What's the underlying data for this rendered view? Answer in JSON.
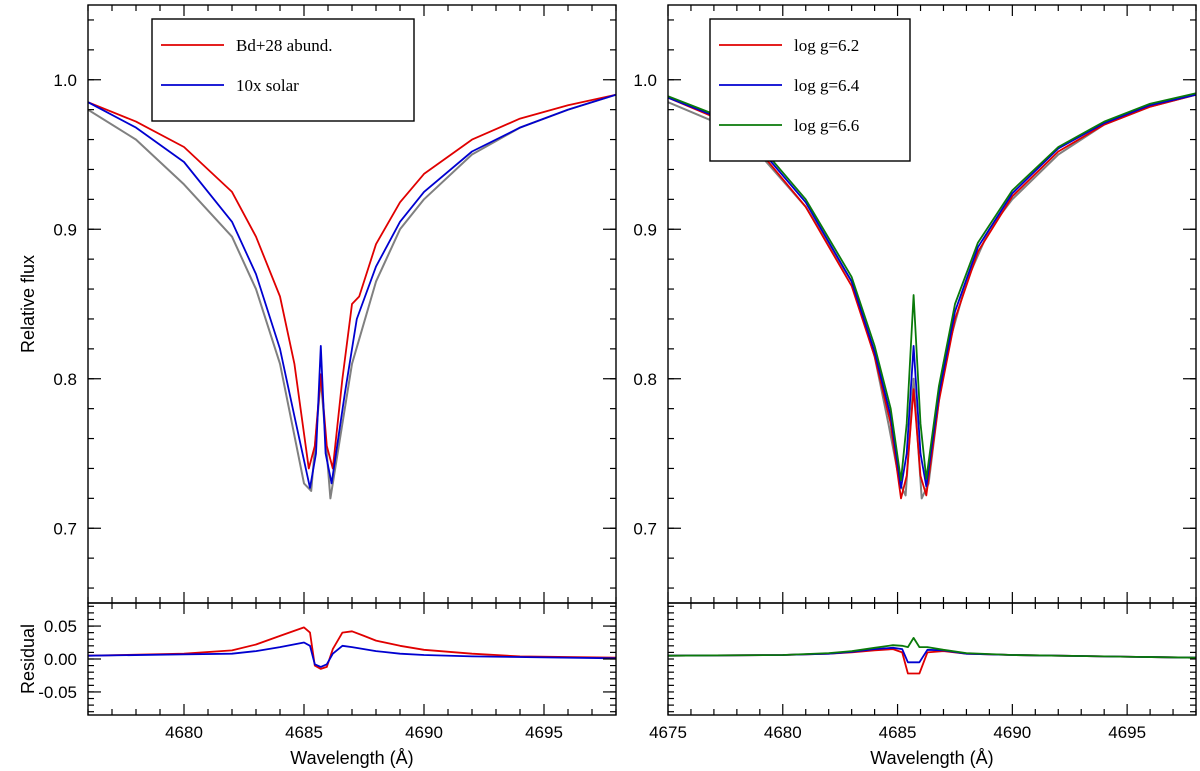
{
  "chart_data": [
    {
      "type": "line",
      "panel": "top-left",
      "ylabel": "Relative flux",
      "xlim": [
        4676,
        4698
      ],
      "ylim": [
        0.65,
        1.05
      ],
      "yticks": [
        {
          "value": 0.7,
          "label": "0.7"
        },
        {
          "value": 0.8,
          "label": "0.8"
        },
        {
          "value": 0.9,
          "label": "0.9"
        },
        {
          "value": 1.0,
          "label": "1.0"
        }
      ],
      "legend": {
        "placement": "top-left"
      },
      "colors": {
        "observed": "#808080",
        "s1": "#e00000",
        "s2": "#0000d0"
      },
      "series": [
        {
          "key": "observed",
          "x": [
            4676,
            4678,
            4680,
            4682,
            4683,
            4684,
            4684.5,
            4685,
            4685.3,
            4685.7,
            4686.1,
            4686.4,
            4687,
            4688,
            4689,
            4690,
            4692,
            4694,
            4696,
            4698
          ],
          "y": [
            0.98,
            0.96,
            0.93,
            0.895,
            0.86,
            0.81,
            0.77,
            0.73,
            0.725,
            0.8,
            0.72,
            0.75,
            0.81,
            0.865,
            0.9,
            0.92,
            0.95,
            0.968,
            0.98,
            0.99
          ]
        },
        {
          "name": "Bd+28 abund.",
          "key": "s1",
          "x": [
            4676,
            4678,
            4680,
            4682,
            4683,
            4684,
            4684.6,
            4685.2,
            4685.45,
            4685.7,
            4685.95,
            4686.2,
            4686.6,
            4687,
            4687.3,
            4688,
            4689,
            4690,
            4692,
            4694,
            4696,
            4698
          ],
          "y": [
            0.985,
            0.972,
            0.955,
            0.925,
            0.895,
            0.855,
            0.81,
            0.74,
            0.755,
            0.803,
            0.755,
            0.74,
            0.8,
            0.85,
            0.855,
            0.89,
            0.918,
            0.937,
            0.96,
            0.974,
            0.983,
            0.99
          ]
        },
        {
          "name": "10x solar",
          "key": "s2",
          "x": [
            4676,
            4678,
            4680,
            4682,
            4683,
            4684,
            4684.6,
            4685.25,
            4685.5,
            4685.7,
            4685.9,
            4686.15,
            4686.7,
            4687.2,
            4688,
            4689,
            4690,
            4692,
            4694,
            4696,
            4698
          ],
          "y": [
            0.985,
            0.968,
            0.945,
            0.905,
            0.87,
            0.82,
            0.775,
            0.727,
            0.75,
            0.822,
            0.75,
            0.73,
            0.79,
            0.84,
            0.875,
            0.905,
            0.925,
            0.952,
            0.968,
            0.98,
            0.99
          ]
        }
      ]
    },
    {
      "type": "line",
      "panel": "bottom-left",
      "xlabel": "Wavelength (Å)",
      "ylabel": "Residual",
      "xlim": [
        4676,
        4698
      ],
      "ylim": [
        -0.085,
        0.085
      ],
      "xticks": [
        {
          "value": 4680,
          "label": "4680"
        },
        {
          "value": 4685,
          "label": "4685"
        },
        {
          "value": 4690,
          "label": "4690"
        },
        {
          "value": 4695,
          "label": "4695"
        }
      ],
      "yticks": [
        {
          "value": -0.05,
          "label": "-0.05"
        },
        {
          "value": 0.0,
          "label": "0.00"
        },
        {
          "value": 0.05,
          "label": "0.05"
        }
      ],
      "colors": {
        "s1": "#e00000",
        "s2": "#0000d0"
      },
      "series": [
        {
          "key": "s1",
          "x": [
            4676,
            4680,
            4682,
            4683,
            4684,
            4685,
            4685.25,
            4685.45,
            4685.7,
            4685.95,
            4686.2,
            4686.6,
            4687,
            4687.5,
            4688,
            4689,
            4690,
            4692,
            4694,
            4698
          ],
          "y": [
            0.005,
            0.008,
            0.013,
            0.022,
            0.035,
            0.048,
            0.04,
            -0.01,
            -0.015,
            -0.012,
            0.015,
            0.04,
            0.042,
            0.035,
            0.028,
            0.02,
            0.014,
            0.008,
            0.004,
            0.002
          ]
        },
        {
          "key": "s2",
          "x": [
            4676,
            4680,
            4682,
            4683,
            4684,
            4685,
            4685.25,
            4685.45,
            4685.7,
            4685.95,
            4686.2,
            4686.6,
            4687,
            4688,
            4689,
            4690,
            4692,
            4698
          ],
          "y": [
            0.005,
            0.007,
            0.008,
            0.012,
            0.018,
            0.025,
            0.02,
            -0.008,
            -0.012,
            -0.008,
            0.008,
            0.02,
            0.018,
            0.012,
            0.008,
            0.006,
            0.004,
            0.001
          ]
        }
      ]
    },
    {
      "type": "line",
      "panel": "top-right",
      "xlim": [
        4675,
        4698
      ],
      "ylim": [
        0.65,
        1.05
      ],
      "yticks": [
        {
          "value": 0.7,
          "label": "0.7"
        },
        {
          "value": 0.8,
          "label": "0.8"
        },
        {
          "value": 0.9,
          "label": "0.9"
        },
        {
          "value": 1.0,
          "label": "1.0"
        }
      ],
      "legend": {
        "placement": "top-left"
      },
      "colors": {
        "observed": "#808080",
        "s1": "#e00000",
        "s2": "#0000d0",
        "s3": "#0a7a0a"
      },
      "series": [
        {
          "key": "observed",
          "x": [
            4675,
            4677,
            4679,
            4681,
            4683,
            4684,
            4684.6,
            4685.1,
            4685.35,
            4685.7,
            4686.05,
            4686.35,
            4687,
            4688,
            4689,
            4690,
            4692,
            4694,
            4696,
            4698
          ],
          "y": [
            0.985,
            0.972,
            0.95,
            0.915,
            0.865,
            0.815,
            0.77,
            0.73,
            0.722,
            0.8,
            0.72,
            0.73,
            0.81,
            0.865,
            0.9,
            0.92,
            0.95,
            0.97,
            0.982,
            0.99
          ]
        },
        {
          "name": "log g=6.2",
          "key": "s1",
          "x": [
            4675,
            4677,
            4679,
            4681,
            4683,
            4684,
            4684.7,
            4685.15,
            4685.4,
            4685.7,
            4686.0,
            4686.25,
            4686.8,
            4687.5,
            4688.5,
            4690,
            4692,
            4694,
            4696,
            4698
          ],
          "y": [
            0.988,
            0.975,
            0.952,
            0.915,
            0.862,
            0.815,
            0.77,
            0.72,
            0.735,
            0.793,
            0.735,
            0.722,
            0.785,
            0.84,
            0.885,
            0.922,
            0.952,
            0.97,
            0.982,
            0.99
          ]
        },
        {
          "name": "log g=6.4",
          "key": "s2",
          "x": [
            4675,
            4677,
            4679,
            4681,
            4683,
            4684,
            4684.7,
            4685.15,
            4685.4,
            4685.7,
            4686.0,
            4686.25,
            4686.8,
            4687.5,
            4688.5,
            4690,
            4692,
            4694,
            4696,
            4698
          ],
          "y": [
            0.988,
            0.976,
            0.954,
            0.918,
            0.865,
            0.818,
            0.775,
            0.727,
            0.75,
            0.822,
            0.75,
            0.728,
            0.79,
            0.845,
            0.888,
            0.924,
            0.954,
            0.971,
            0.983,
            0.99
          ]
        },
        {
          "name": "log g=6.6",
          "key": "s3",
          "x": [
            4675,
            4677,
            4679,
            4681,
            4683,
            4684,
            4684.7,
            4685.15,
            4685.4,
            4685.7,
            4686.0,
            4686.25,
            4686.8,
            4687.5,
            4688.5,
            4690,
            4692,
            4694,
            4696,
            4698
          ],
          "y": [
            0.989,
            0.977,
            0.956,
            0.92,
            0.868,
            0.822,
            0.78,
            0.732,
            0.77,
            0.856,
            0.77,
            0.733,
            0.795,
            0.85,
            0.891,
            0.926,
            0.955,
            0.972,
            0.984,
            0.991
          ]
        }
      ]
    },
    {
      "type": "line",
      "panel": "bottom-right",
      "xlabel": "Wavelength (Å)",
      "xlim": [
        4675,
        4698
      ],
      "ylim": [
        -0.085,
        0.085
      ],
      "xticks": [
        {
          "value": 4675,
          "label": "4675"
        },
        {
          "value": 4680,
          "label": "4680"
        },
        {
          "value": 4685,
          "label": "4685"
        },
        {
          "value": 4690,
          "label": "4690"
        },
        {
          "value": 4695,
          "label": "4695"
        }
      ],
      "yticks": [],
      "colors": {
        "s1": "#e00000",
        "s2": "#0000d0",
        "s3": "#0a7a0a"
      },
      "series": [
        {
          "key": "s1",
          "x": [
            4675,
            4680,
            4682,
            4683,
            4684,
            4684.8,
            4685.2,
            4685.45,
            4685.7,
            4685.95,
            4686.3,
            4687,
            4688,
            4690,
            4694,
            4698
          ],
          "y": [
            0.005,
            0.006,
            0.008,
            0.01,
            0.013,
            0.015,
            0.01,
            -0.022,
            -0.022,
            -0.022,
            0.01,
            0.012,
            0.008,
            0.006,
            0.004,
            0.002
          ]
        },
        {
          "key": "s2",
          "x": [
            4675,
            4680,
            4682,
            4683,
            4684,
            4684.8,
            4685.2,
            4685.45,
            4685.7,
            4685.95,
            4686.3,
            4687,
            4688,
            4690,
            4694,
            4698
          ],
          "y": [
            0.005,
            0.006,
            0.008,
            0.011,
            0.015,
            0.017,
            0.015,
            -0.005,
            -0.005,
            -0.005,
            0.014,
            0.013,
            0.008,
            0.006,
            0.004,
            0.002
          ]
        },
        {
          "key": "s3",
          "x": [
            4675,
            4680,
            4682,
            4683,
            4684,
            4684.8,
            4685.2,
            4685.45,
            4685.7,
            4685.95,
            4686.3,
            4687,
            4688,
            4690,
            4694,
            4698
          ],
          "y": [
            0.005,
            0.006,
            0.009,
            0.012,
            0.017,
            0.021,
            0.02,
            0.018,
            0.032,
            0.018,
            0.018,
            0.014,
            0.009,
            0.006,
            0.004,
            0.002
          ]
        }
      ]
    }
  ]
}
